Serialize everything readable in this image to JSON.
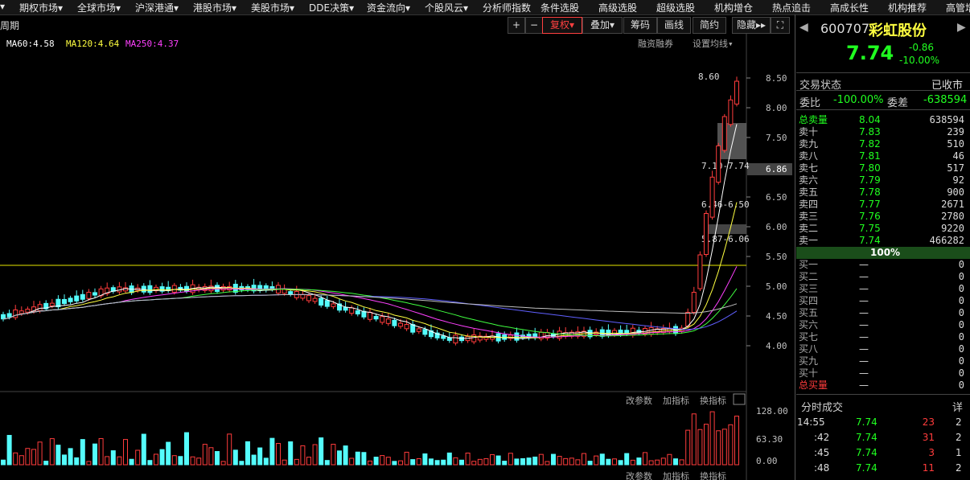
{
  "menu": [
    "▾",
    "期权市场▾",
    "全球市场▾",
    "沪深港通▾",
    "港股市场▾",
    "美股市场▾",
    "DDE决策▾",
    "资金流向▾",
    "个股风云▾",
    "分析师指数",
    "条件选股",
    "高级选股",
    "超级选股",
    "机构增仓",
    "热点追击",
    "高成长性",
    "机构推荐",
    "高管增"
  ],
  "toolbar": {
    "period": "周期",
    "buttons": [
      "+",
      "−",
      "复权▾",
      "叠加▾",
      "筹码",
      "画线",
      "简约",
      "隐藏▸▸",
      "⛶"
    ]
  },
  "indicators": [
    "MA60:4.58",
    "MA120:4.64",
    "MA250:4.37"
  ],
  "links": [
    "融资融券",
    "设置均线▾"
  ],
  "price_axis": {
    "ticks": [
      "8.50",
      "8.00",
      "7.50",
      "6.50",
      "6.00",
      "5.50",
      "5.00",
      "4.50",
      "4.00"
    ],
    "current": "6.86"
  },
  "annotations": [
    "8.60",
    "7.10-7.74",
    "6.46-6.50",
    "5.87-6.06"
  ],
  "volume": {
    "tools": [
      "改参数",
      "加指标",
      "换指标"
    ],
    "ticks": [
      "128.00",
      "63.30",
      "0.00"
    ]
  },
  "quote": {
    "code": "600707",
    "name": "彩虹股份",
    "price": "7.74",
    "change": "-0.86",
    "pct": "-10.00%",
    "status_label": "交易状态",
    "status": "已收市",
    "ratio_label": "委比",
    "ratio": "-100.00%",
    "diff_label": "委差",
    "diff": "-638594"
  },
  "order_book": {
    "sell_total": [
      "总卖量",
      "8.04",
      "638594"
    ],
    "sells": [
      [
        "卖十",
        "7.83",
        "239"
      ],
      [
        "卖九",
        "7.82",
        "510"
      ],
      [
        "卖八",
        "7.81",
        "46"
      ],
      [
        "卖七",
        "7.80",
        "517"
      ],
      [
        "卖六",
        "7.79",
        "92"
      ],
      [
        "卖五",
        "7.78",
        "900"
      ],
      [
        "卖四",
        "7.77",
        "2671"
      ],
      [
        "卖三",
        "7.76",
        "2780"
      ],
      [
        "卖二",
        "7.75",
        "9220"
      ],
      [
        "卖一",
        "7.74",
        "466282"
      ]
    ],
    "bar": "100%",
    "buys": [
      [
        "买一",
        "—",
        "0"
      ],
      [
        "买二",
        "—",
        "0"
      ],
      [
        "买三",
        "—",
        "0"
      ],
      [
        "买四",
        "—",
        "0"
      ],
      [
        "买五",
        "—",
        "0"
      ],
      [
        "买六",
        "—",
        "0"
      ],
      [
        "买七",
        "—",
        "0"
      ],
      [
        "买八",
        "—",
        "0"
      ],
      [
        "买九",
        "—",
        "0"
      ],
      [
        "买十",
        "—",
        "0"
      ]
    ],
    "buy_total": [
      "总买量",
      "—",
      "0"
    ]
  },
  "trades": {
    "title": "分时成交",
    "detail": "详",
    "rows": [
      [
        "14:55",
        "7.74",
        "23",
        "2"
      ],
      [
        ":42",
        "7.74",
        "31",
        "2"
      ],
      [
        ":45",
        "7.74",
        "3",
        "1"
      ],
      [
        ":48",
        "7.74",
        "11",
        "2"
      ]
    ]
  }
}
